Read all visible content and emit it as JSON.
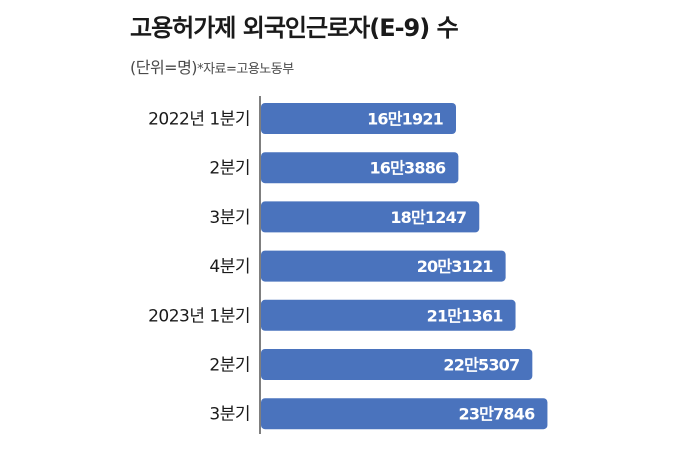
{
  "title": "고용허가제 외국인근로자(E-9) 수",
  "subtitle": "(단위=명)",
  "source": "*자료=고용노동부",
  "colors": {
    "bar": "#4a73bd",
    "axis": "#555555",
    "text": "#1a1a1a"
  },
  "chart_data": {
    "type": "bar",
    "orientation": "horizontal",
    "categories": [
      "2022년 1분기",
      "2분기",
      "3분기",
      "4분기",
      "2023년 1분기",
      "2분기",
      "3분기"
    ],
    "values": [
      161921,
      163886,
      181247,
      203121,
      211361,
      225307,
      237846
    ],
    "value_labels": [
      "16만1921",
      "16만3886",
      "18만1247",
      "20만3121",
      "21만1361",
      "22만5307",
      "23만7846"
    ],
    "title": "고용허가제 외국인근로자(E-9) 수",
    "unit": "명",
    "legend": "none",
    "grid": false
  }
}
